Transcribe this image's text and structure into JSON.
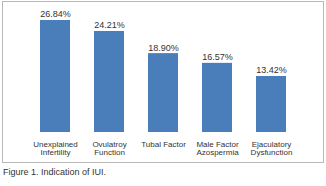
{
  "chart_data": {
    "type": "bar",
    "categories": [
      "Unexplained Infertility",
      "Ovulatroy Function",
      "Tubal Factor",
      "Male Factor Azospermia",
      "Ejaculatory Dysfunction"
    ],
    "values": [
      26.84,
      24.21,
      18.9,
      16.57,
      13.42
    ],
    "value_labels": [
      "26.84%",
      "24.21%",
      "18.90%",
      "16.57%",
      "13.42%"
    ],
    "color": "#4a7ebb",
    "data_labels": true,
    "tick_labels": "x",
    "grid": false,
    "caption": "Figure 1. Indication of IUI."
  }
}
